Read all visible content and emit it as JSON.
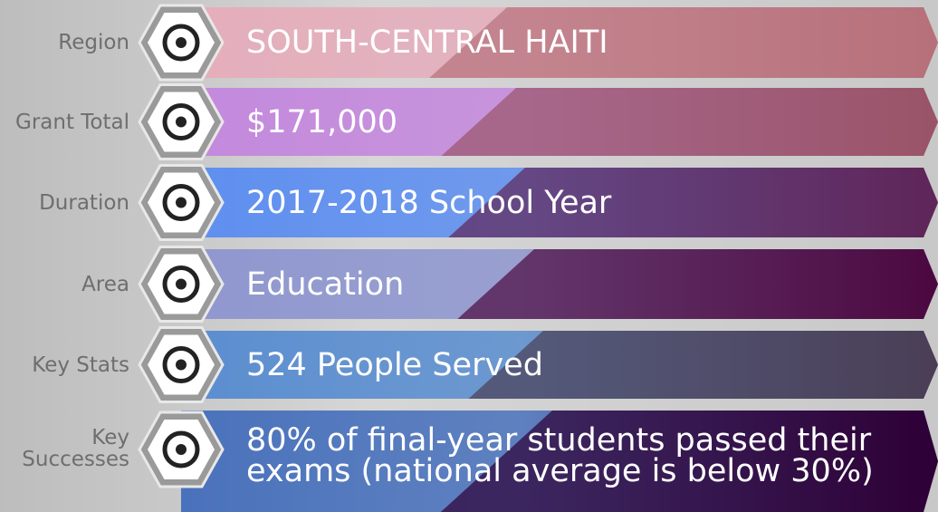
{
  "rows": [
    {
      "label": "Region",
      "value": "SOUTH-CENTRAL HAITI"
    },
    {
      "label": "Grant Total",
      "value": "$171,000"
    },
    {
      "label": "Duration",
      "value": "2017-2018 School Year"
    },
    {
      "label": "Area",
      "value": "Education"
    },
    {
      "label": "Key Stats",
      "value": "524 People Served"
    },
    {
      "label": "Key Successes",
      "value": "80% of final-year students passed their exams (national average is below 30%)"
    }
  ]
}
